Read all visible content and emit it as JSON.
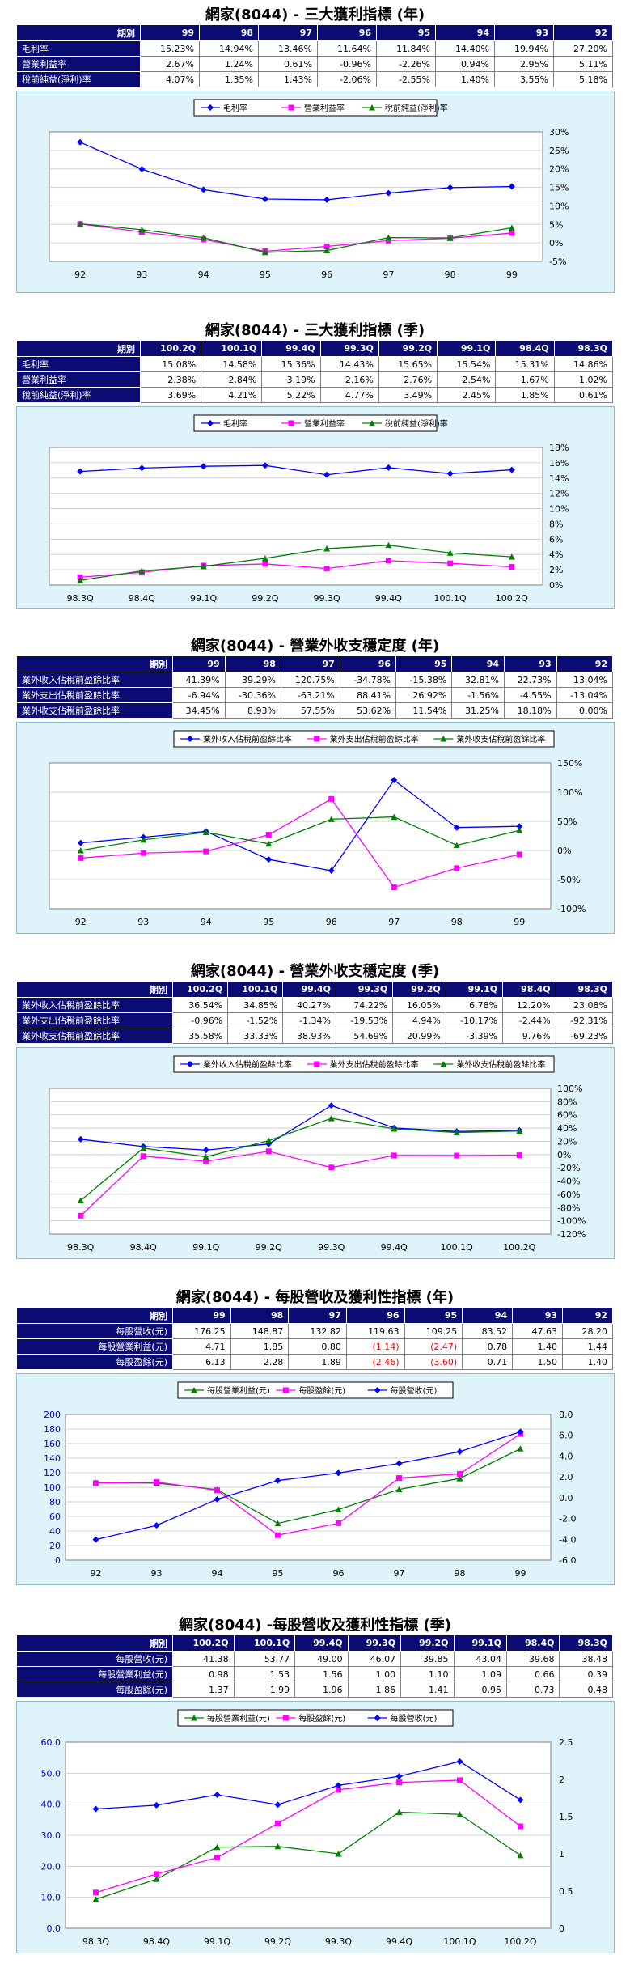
{
  "charts": [
    {
      "title": "網家(8044) - 三大獲利指標 (年)",
      "header_label": "期別",
      "periods": [
        "99",
        "98",
        "97",
        "96",
        "95",
        "94",
        "93",
        "92"
      ],
      "rows": [
        {
          "label": "毛利率",
          "cells": [
            "15.23%",
            "14.94%",
            "13.46%",
            "11.64%",
            "11.84%",
            "14.40%",
            "19.94%",
            "27.20%"
          ]
        },
        {
          "label": "營業利益率",
          "cells": [
            "2.67%",
            "1.24%",
            "0.61%",
            "-0.96%",
            "-2.26%",
            "0.94%",
            "2.95%",
            "5.11%"
          ]
        },
        {
          "label": "稅前純益(淨利)率",
          "cells": [
            "4.07%",
            "1.35%",
            "1.43%",
            "-2.06%",
            "-2.55%",
            "1.40%",
            "3.55%",
            "5.18%"
          ]
        }
      ]
    },
    {
      "title": "網家(8044) - 三大獲利指標 (季)",
      "header_label": "期別",
      "periods": [
        "100.2Q",
        "100.1Q",
        "99.4Q",
        "99.3Q",
        "99.2Q",
        "99.1Q",
        "98.4Q",
        "98.3Q"
      ],
      "rows": [
        {
          "label": "毛利率",
          "cells": [
            "15.08%",
            "14.58%",
            "15.36%",
            "14.43%",
            "15.65%",
            "15.54%",
            "15.31%",
            "14.86%"
          ]
        },
        {
          "label": "營業利益率",
          "cells": [
            "2.38%",
            "2.84%",
            "3.19%",
            "2.16%",
            "2.76%",
            "2.54%",
            "1.67%",
            "1.02%"
          ]
        },
        {
          "label": "稅前純益(淨利)率",
          "cells": [
            "3.69%",
            "4.21%",
            "5.22%",
            "4.77%",
            "3.49%",
            "2.45%",
            "1.85%",
            "0.61%"
          ]
        }
      ]
    },
    {
      "title": "網家(8044) - 營業外收支穩定度 (年)",
      "header_label": "期別",
      "periods": [
        "99",
        "98",
        "97",
        "96",
        "95",
        "94",
        "93",
        "92"
      ],
      "rows": [
        {
          "label": "業外收入佔稅前盈餘比率",
          "cells": [
            "41.39%",
            "39.29%",
            "120.75%",
            "-34.78%",
            "-15.38%",
            "32.81%",
            "22.73%",
            "13.04%"
          ]
        },
        {
          "label": "業外支出佔稅前盈餘比率",
          "cells": [
            "-6.94%",
            "-30.36%",
            "-63.21%",
            "88.41%",
            "26.92%",
            "-1.56%",
            "-4.55%",
            "-13.04%"
          ]
        },
        {
          "label": "業外收支佔稅前盈餘比率",
          "cells": [
            "34.45%",
            "8.93%",
            "57.55%",
            "53.62%",
            "11.54%",
            "31.25%",
            "18.18%",
            "0.00%"
          ]
        }
      ]
    },
    {
      "title": "網家(8044) - 營業外收支穩定度 (季)",
      "header_label": "期別",
      "periods": [
        "100.2Q",
        "100.1Q",
        "99.4Q",
        "99.3Q",
        "99.2Q",
        "99.1Q",
        "98.4Q",
        "98.3Q"
      ],
      "rows": [
        {
          "label": "業外收入佔稅前盈餘比率",
          "cells": [
            "36.54%",
            "34.85%",
            "40.27%",
            "74.22%",
            "16.05%",
            "6.78%",
            "12.20%",
            "23.08%"
          ]
        },
        {
          "label": "業外支出佔稅前盈餘比率",
          "cells": [
            "-0.96%",
            "-1.52%",
            "-1.34%",
            "-19.53%",
            "4.94%",
            "-10.17%",
            "-2.44%",
            "-92.31%"
          ]
        },
        {
          "label": "業外收支佔稅前盈餘比率",
          "cells": [
            "35.58%",
            "33.33%",
            "38.93%",
            "54.69%",
            "20.99%",
            "-3.39%",
            "9.76%",
            "-69.23%"
          ]
        }
      ]
    },
    {
      "title": "網家(8044) - 每股營收及獲利性指標 (年)",
      "header_label": "期別",
      "periods": [
        "99",
        "98",
        "97",
        "96",
        "95",
        "94",
        "93",
        "92"
      ],
      "rows": [
        {
          "label": "每股營收(元)",
          "cells": [
            "176.25",
            "148.87",
            "132.82",
            "119.63",
            "109.25",
            "83.52",
            "47.63",
            "28.20"
          ]
        },
        {
          "label": "每股營業利益(元)",
          "cells": [
            "4.71",
            "1.85",
            "0.80",
            "(1.14)",
            "(2.47)",
            "0.78",
            "1.40",
            "1.44"
          ]
        },
        {
          "label": "每股盈餘(元)",
          "cells": [
            "6.13",
            "2.28",
            "1.89",
            "(2.46)",
            "(3.60)",
            "0.71",
            "1.50",
            "1.40"
          ]
        }
      ]
    },
    {
      "title": "網家(8044) -每股營收及獲利性指標 (季)",
      "header_label": "期別",
      "periods": [
        "100.2Q",
        "100.1Q",
        "99.4Q",
        "99.3Q",
        "99.2Q",
        "99.1Q",
        "98.4Q",
        "98.3Q"
      ],
      "rows": [
        {
          "label": "每股營收(元)",
          "cells": [
            "41.38",
            "53.77",
            "49.00",
            "46.07",
            "39.85",
            "43.04",
            "39.68",
            "38.48"
          ]
        },
        {
          "label": "每股營業利益(元)",
          "cells": [
            "0.98",
            "1.53",
            "1.56",
            "1.00",
            "1.10",
            "1.09",
            "0.66",
            "0.39"
          ]
        },
        {
          "label": "每股盈餘(元)",
          "cells": [
            "1.37",
            "1.99",
            "1.96",
            "1.86",
            "1.41",
            "0.95",
            "0.73",
            "0.48"
          ]
        }
      ]
    }
  ],
  "chart_data": [
    {
      "type": "line",
      "x": [
        "92",
        "93",
        "94",
        "95",
        "96",
        "97",
        "98",
        "99"
      ],
      "y_ticks": [
        "30%",
        "25%",
        "20%",
        "15%",
        "10%",
        "5%",
        "0%",
        "-5%"
      ],
      "ylim": [
        -5,
        30
      ],
      "legend": [
        "毛利率",
        "營業利益率",
        "稅前純益(淨利)率"
      ],
      "series": [
        {
          "name": "毛利率",
          "color": "#0000ff",
          "marker": "diamond",
          "axis": "y",
          "values": [
            27.2,
            19.94,
            14.4,
            11.84,
            11.64,
            13.46,
            14.94,
            15.23
          ]
        },
        {
          "name": "營業利益率",
          "color": "#ff00ff",
          "marker": "square",
          "axis": "y",
          "values": [
            5.11,
            2.95,
            0.94,
            -2.26,
            -0.96,
            0.61,
            1.24,
            2.67
          ]
        },
        {
          "name": "稅前純益(淨利)率",
          "color": "#008000",
          "marker": "triangle",
          "axis": "y",
          "values": [
            5.18,
            3.55,
            1.4,
            -2.55,
            -2.06,
            1.43,
            1.35,
            4.07
          ]
        }
      ]
    },
    {
      "type": "line",
      "x": [
        "98.3Q",
        "98.4Q",
        "99.1Q",
        "99.2Q",
        "99.3Q",
        "99.4Q",
        "100.1Q",
        "100.2Q"
      ],
      "y_ticks": [
        "18%",
        "16%",
        "14%",
        "12%",
        "10%",
        "8%",
        "6%",
        "4%",
        "2%",
        "0%"
      ],
      "ylim": [
        0,
        18
      ],
      "legend": [
        "毛利率",
        "營業利益率",
        "稅前純益(淨利)率"
      ],
      "series": [
        {
          "name": "毛利率",
          "color": "#0000ff",
          "marker": "diamond",
          "axis": "y",
          "values": [
            14.86,
            15.31,
            15.54,
            15.65,
            14.43,
            15.36,
            14.58,
            15.08
          ]
        },
        {
          "name": "營業利益率",
          "color": "#ff00ff",
          "marker": "square",
          "axis": "y",
          "values": [
            1.02,
            1.67,
            2.54,
            2.76,
            2.16,
            3.19,
            2.84,
            2.38
          ]
        },
        {
          "name": "稅前純益(淨利)率",
          "color": "#008000",
          "marker": "triangle",
          "axis": "y",
          "values": [
            0.61,
            1.85,
            2.45,
            3.49,
            4.77,
            5.22,
            4.21,
            3.69
          ]
        }
      ]
    },
    {
      "type": "line",
      "x": [
        "92",
        "93",
        "94",
        "95",
        "96",
        "97",
        "98",
        "99"
      ],
      "y_ticks": [
        "150%",
        "100%",
        "50%",
        "0%",
        "-50%",
        "-100%"
      ],
      "ylim": [
        -100,
        150
      ],
      "legend": [
        "業外收入佔稅前盈餘比率",
        "業外支出佔稅前盈餘比率",
        "業外收支佔稅前盈餘比率"
      ],
      "series": [
        {
          "name": "業外收入佔稅前盈餘比率",
          "color": "#0000ff",
          "marker": "diamond",
          "axis": "y",
          "values": [
            13.04,
            22.73,
            32.81,
            -15.38,
            -34.78,
            120.75,
            39.29,
            41.39
          ]
        },
        {
          "name": "業外支出佔稅前盈餘比率",
          "color": "#ff00ff",
          "marker": "square",
          "axis": "y",
          "values": [
            -13.04,
            -4.55,
            -1.56,
            26.92,
            88.41,
            -63.21,
            -30.36,
            -6.94
          ]
        },
        {
          "name": "業外收支佔稅前盈餘比率",
          "color": "#008000",
          "marker": "triangle",
          "axis": "y",
          "values": [
            0.0,
            18.18,
            31.25,
            11.54,
            53.62,
            57.55,
            8.93,
            34.45
          ]
        }
      ]
    },
    {
      "type": "line",
      "x": [
        "98.3Q",
        "98.4Q",
        "99.1Q",
        "99.2Q",
        "99.3Q",
        "99.4Q",
        "100.1Q",
        "100.2Q"
      ],
      "y_ticks": [
        "100%",
        "80%",
        "60%",
        "40%",
        "20%",
        "0%",
        "-20%",
        "-40%",
        "-60%",
        "-80%",
        "-100%",
        "-120%"
      ],
      "ylim": [
        -120,
        100
      ],
      "legend": [
        "業外收入佔稅前盈餘比率",
        "業外支出佔稅前盈餘比率",
        "業外收支佔稅前盈餘比率"
      ],
      "series": [
        {
          "name": "業外收入佔稅前盈餘比率",
          "color": "#0000ff",
          "marker": "diamond",
          "axis": "y",
          "values": [
            23.08,
            12.2,
            6.78,
            16.05,
            74.22,
            40.27,
            34.85,
            36.54
          ]
        },
        {
          "name": "業外支出佔稅前盈餘比率",
          "color": "#ff00ff",
          "marker": "square",
          "axis": "y",
          "values": [
            -92.31,
            -2.44,
            -10.17,
            4.94,
            -19.53,
            -1.34,
            -1.52,
            -0.96
          ]
        },
        {
          "name": "業外收支佔稅前盈餘比率",
          "color": "#008000",
          "marker": "triangle",
          "axis": "y",
          "values": [
            -69.23,
            9.76,
            -3.39,
            20.99,
            54.69,
            38.93,
            33.33,
            35.58
          ]
        }
      ]
    },
    {
      "type": "line",
      "x": [
        "92",
        "93",
        "94",
        "95",
        "96",
        "97",
        "98",
        "99"
      ],
      "y_ticks": [
        "200",
        "180",
        "160",
        "140",
        "120",
        "100",
        "80",
        "60",
        "40",
        "20",
        "0"
      ],
      "y2_ticks": [
        "8.0",
        "6.0",
        "4.0",
        "2.0",
        "0.0",
        "-2.0",
        "-4.0",
        "-6.0"
      ],
      "ylim": [
        0,
        200
      ],
      "y2lim": [
        -6,
        8
      ],
      "legend": [
        "每股營業利益(元)",
        "每股盈餘(元)",
        "每股營收(元)"
      ],
      "series": [
        {
          "name": "每股營業利益(元)",
          "color": "#008000",
          "marker": "triangle",
          "axis": "y2",
          "values": [
            1.44,
            1.4,
            0.78,
            -2.47,
            -1.14,
            0.8,
            1.85,
            4.71
          ]
        },
        {
          "name": "每股盈餘(元)",
          "color": "#ff00ff",
          "marker": "square",
          "axis": "y2",
          "values": [
            1.4,
            1.5,
            0.71,
            -3.6,
            -2.46,
            1.89,
            2.28,
            6.13
          ]
        },
        {
          "name": "每股營收(元)",
          "color": "#0000ff",
          "marker": "diamond",
          "axis": "y",
          "values": [
            28.2,
            47.63,
            83.52,
            109.25,
            119.63,
            132.82,
            148.87,
            176.25
          ]
        }
      ]
    },
    {
      "type": "line",
      "x": [
        "98.3Q",
        "98.4Q",
        "99.1Q",
        "99.2Q",
        "99.3Q",
        "99.4Q",
        "100.1Q",
        "100.2Q"
      ],
      "y_ticks": [
        "60.0",
        "50.0",
        "40.0",
        "30.0",
        "20.0",
        "10.0",
        "0.0"
      ],
      "y2_ticks": [
        "2.5",
        "2",
        "1.5",
        "1",
        "0.5",
        "0"
      ],
      "ylim": [
        0,
        60
      ],
      "y2lim": [
        0,
        2.5
      ],
      "legend": [
        "每股營業利益(元)",
        "每股盈餘(元)",
        "每股營收(元)"
      ],
      "series": [
        {
          "name": "每股營業利益(元)",
          "color": "#008000",
          "marker": "triangle",
          "axis": "y2",
          "values": [
            0.39,
            0.66,
            1.09,
            1.1,
            1.0,
            1.56,
            1.53,
            0.98
          ]
        },
        {
          "name": "每股盈餘(元)",
          "color": "#ff00ff",
          "marker": "square",
          "axis": "y2",
          "values": [
            0.48,
            0.73,
            0.95,
            1.41,
            1.86,
            1.96,
            1.99,
            1.37
          ]
        },
        {
          "name": "每股營收(元)",
          "color": "#0000ff",
          "marker": "diamond",
          "axis": "y",
          "values": [
            38.48,
            39.68,
            43.04,
            39.85,
            46.07,
            49.0,
            53.77,
            41.38
          ]
        }
      ]
    }
  ]
}
